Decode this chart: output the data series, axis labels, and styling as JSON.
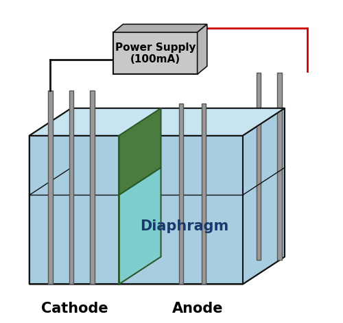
{
  "background_color": "#ffffff",
  "box_fill": "#a8cce0",
  "box_top_fill": "#c8e4f0",
  "box_edge": "#111111",
  "diaphragm_green": "#4a7c3f",
  "diaphragm_teal": "#7ecece",
  "diaphragm_edge": "#2a5a2a",
  "electrode_fill": "#999999",
  "electrode_edge": "#555555",
  "ps_fill": "#c8c8c8",
  "ps_top_fill": "#b0b0b0",
  "ps_right_fill": "#b8b8b8",
  "ps_edge": "#111111",
  "wire_black": "#111111",
  "wire_red": "#cc0000",
  "cathode_label": "Cathode",
  "anode_label": "Anode",
  "diaphragm_label": "Diaphragm",
  "ps_label": "Power Supply\n(100mA)",
  "label_fontsize": 15,
  "diaphragm_fontsize": 15,
  "ps_fontsize": 11
}
